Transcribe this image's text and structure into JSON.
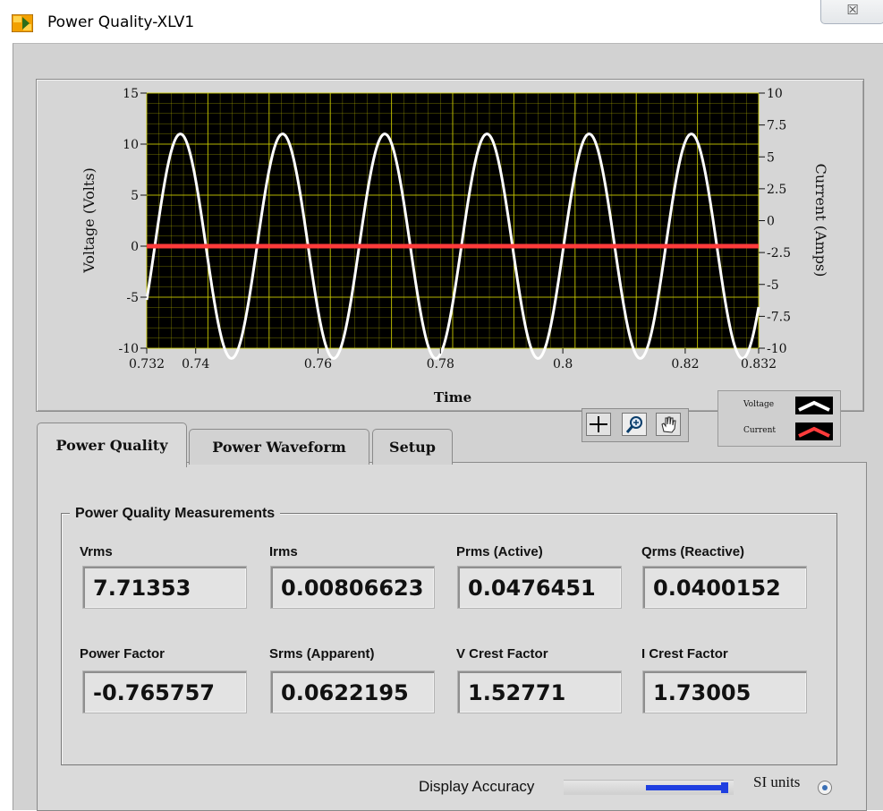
{
  "window": {
    "title": "Power Quality-XLV1",
    "close_glyph": "☒"
  },
  "chart_data": {
    "type": "line",
    "xlabel": "Time",
    "ylabel": "Voltage (Volts)",
    "y2label": "Current (Amps)",
    "xlim": [
      0.732,
      0.832
    ],
    "ylim": [
      -10,
      15
    ],
    "y2lim": [
      -10,
      10
    ],
    "x_ticks": [
      "0.732",
      "0.74",
      "0.76",
      "0.78",
      "0.8",
      "0.82",
      "0.832"
    ],
    "y_ticks": [
      "15",
      "10",
      "5",
      "0",
      "-5",
      "-10"
    ],
    "y2_ticks": [
      "10",
      "7.5",
      "5",
      "2.5",
      "0",
      "-2.5",
      "-5",
      "-7.5",
      "-10"
    ],
    "grid": true,
    "background": "#000000",
    "grid_color": "#c8c800",
    "series": [
      {
        "name": "Voltage",
        "color": "#ffffff",
        "amplitude": 11,
        "period": 0.0167,
        "first_peak": 0.7375,
        "axis": "left"
      },
      {
        "name": "Current",
        "color": "#ff3b3b",
        "constant": 0,
        "axis": "left"
      }
    ]
  },
  "legend": {
    "voltage": "Voltage",
    "current": "Current"
  },
  "tools": {
    "cursor": "cursor-move-icon",
    "zoom": "zoom-icon",
    "pan": "hand-pan-icon"
  },
  "tabs": [
    {
      "label": "Power Quality"
    },
    {
      "label": "Power Waveform"
    },
    {
      "label": "Setup"
    }
  ],
  "measurements": {
    "group_title": "Power Quality Measurements",
    "vrms": {
      "label": "Vrms",
      "value": "7.71353"
    },
    "irms": {
      "label": "Irms",
      "value": "0.00806623"
    },
    "prms": {
      "label": "Prms (Active)",
      "value": "0.0476451"
    },
    "qrms": {
      "label": "Qrms (Reactive)",
      "value": "0.0400152"
    },
    "pf": {
      "label": "Power Factor",
      "value": "-0.765757"
    },
    "srms": {
      "label": "Srms (Apparent)",
      "value": "0.0622195"
    },
    "vcrest": {
      "label": "V Crest Factor",
      "value": "1.52771"
    },
    "icrest": {
      "label": "I Crest Factor",
      "value": "1.73005"
    }
  },
  "display_accuracy": {
    "label": "Display Accuracy",
    "level": 0.95
  },
  "si_units": {
    "label": "SI units",
    "checked": true
  }
}
